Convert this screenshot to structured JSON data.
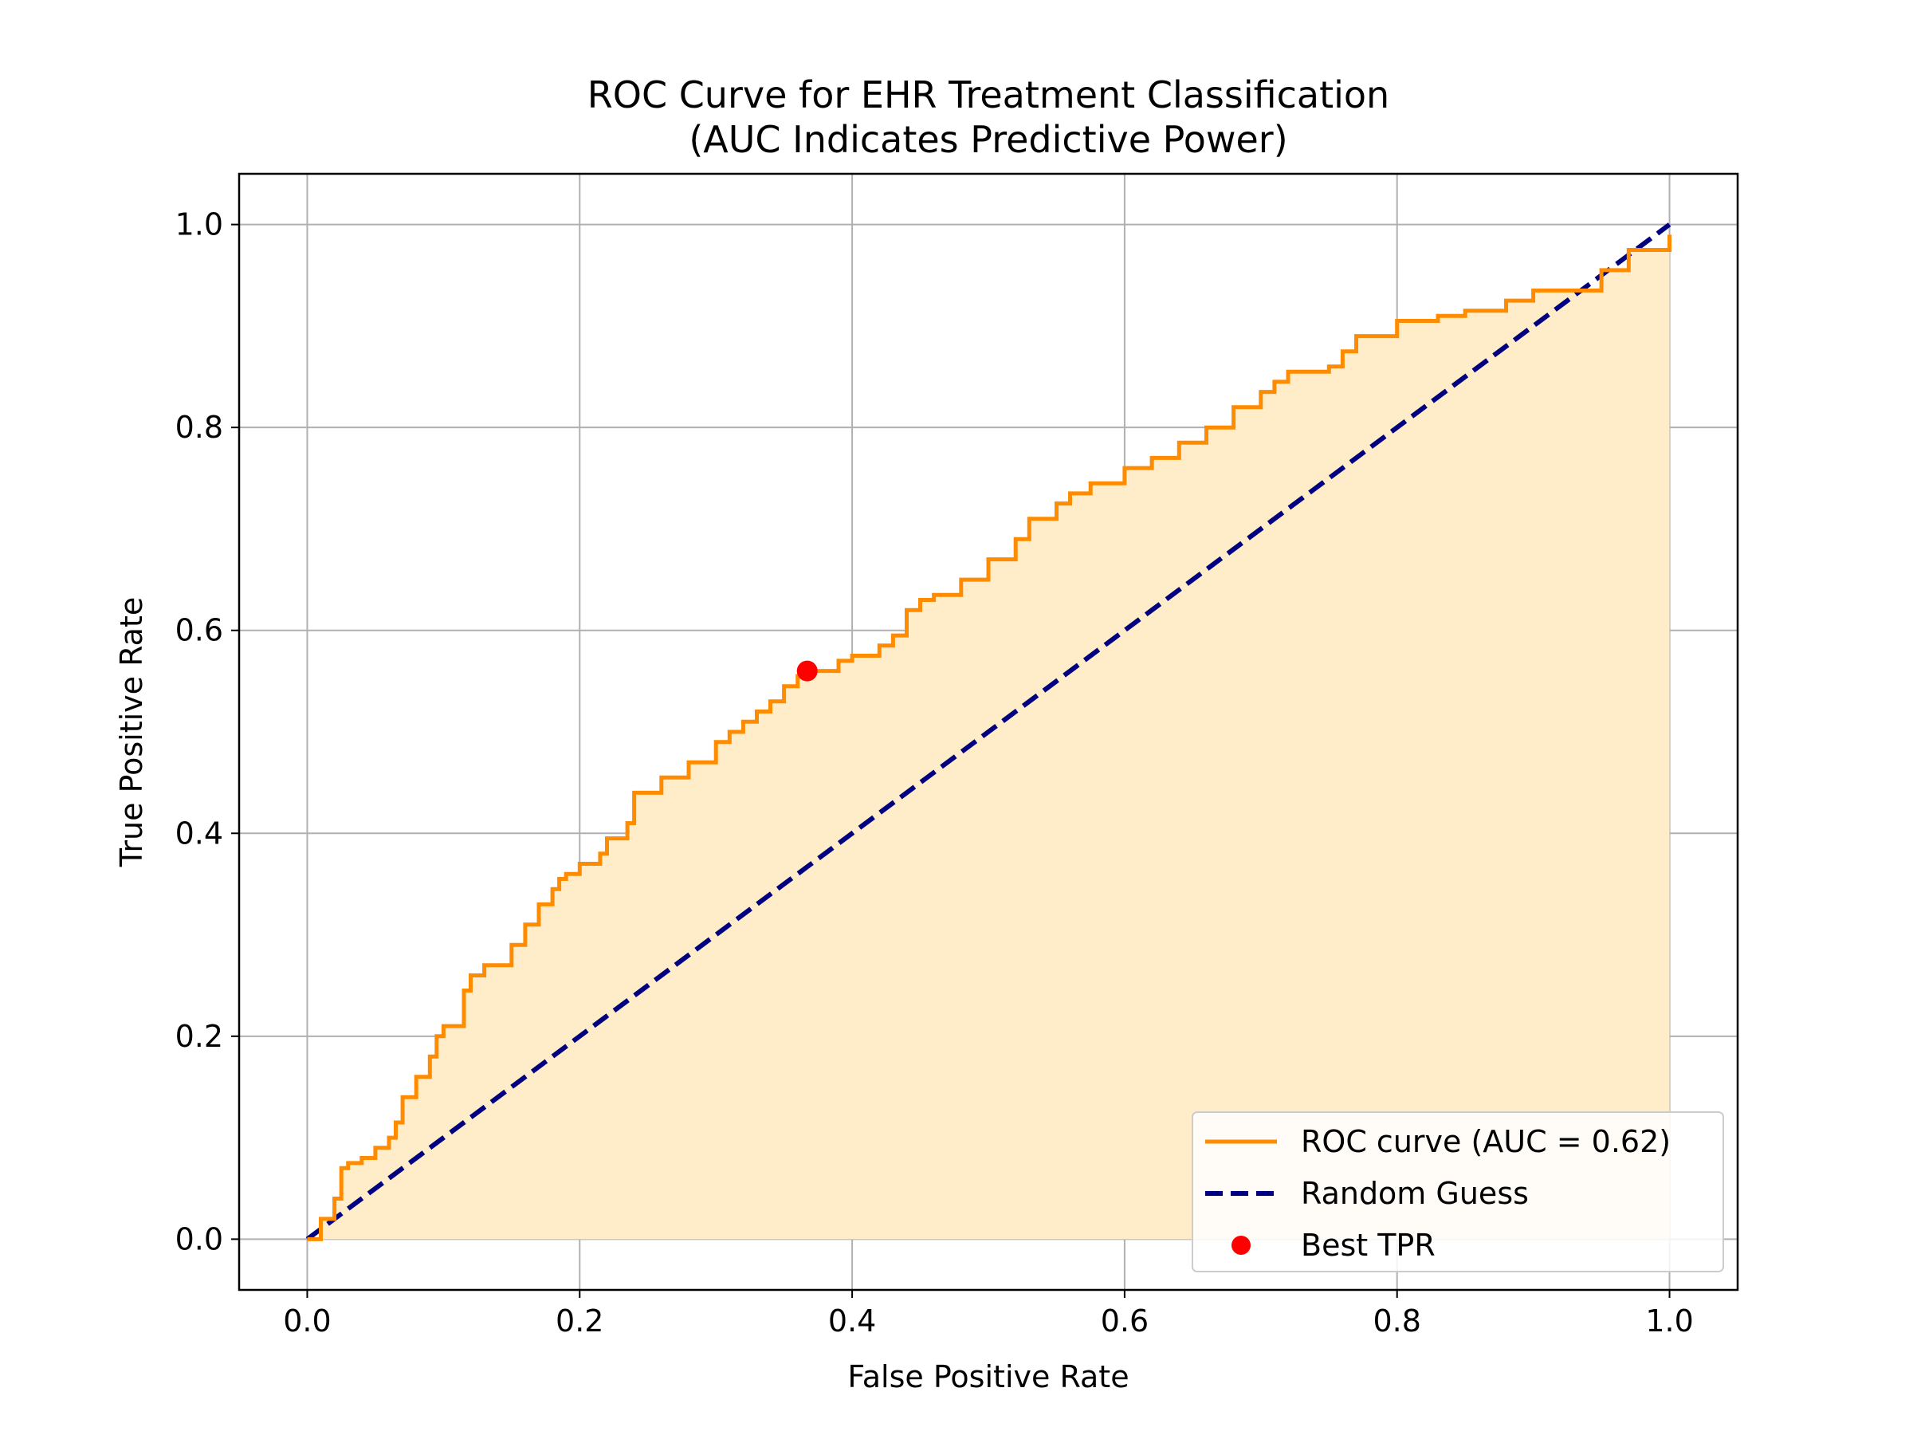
{
  "chart_data": {
    "type": "line",
    "title": "ROC Curve for EHR Treatment Classification",
    "subtitle": "(AUC Indicates Predictive Power)",
    "xlabel": "False Positive Rate",
    "ylabel": "True Positive Rate",
    "xlim": [
      -0.05,
      1.05
    ],
    "ylim": [
      -0.05,
      1.05
    ],
    "xticks": [
      0.0,
      0.2,
      0.4,
      0.6,
      0.8,
      1.0
    ],
    "yticks": [
      0.0,
      0.2,
      0.4,
      0.6,
      0.8,
      1.0
    ],
    "xtick_labels": [
      "0.0",
      "0.2",
      "0.4",
      "0.6",
      "0.8",
      "1.0"
    ],
    "ytick_labels": [
      "0.0",
      "0.2",
      "0.4",
      "0.6",
      "0.8",
      "1.0"
    ],
    "grid": true,
    "legend_position": "lower-right",
    "series": [
      {
        "name": "ROC curve (AUC = 0.62)",
        "style": "solid",
        "color": "#ff8c00",
        "fill_color": "#ffecc8",
        "x": [
          0.0,
          0.01,
          0.02,
          0.025,
          0.03,
          0.04,
          0.05,
          0.06,
          0.065,
          0.07,
          0.08,
          0.09,
          0.095,
          0.1,
          0.115,
          0.12,
          0.13,
          0.15,
          0.16,
          0.17,
          0.18,
          0.185,
          0.19,
          0.2,
          0.215,
          0.22,
          0.235,
          0.24,
          0.26,
          0.28,
          0.3,
          0.31,
          0.32,
          0.33,
          0.34,
          0.35,
          0.36,
          0.367,
          0.39,
          0.4,
          0.42,
          0.43,
          0.44,
          0.45,
          0.46,
          0.48,
          0.5,
          0.52,
          0.53,
          0.55,
          0.56,
          0.575,
          0.6,
          0.62,
          0.64,
          0.66,
          0.68,
          0.7,
          0.71,
          0.72,
          0.75,
          0.76,
          0.77,
          0.8,
          0.83,
          0.85,
          0.88,
          0.9,
          0.95,
          0.97,
          1.0
        ],
        "y": [
          0.0,
          0.02,
          0.04,
          0.07,
          0.075,
          0.08,
          0.09,
          0.1,
          0.115,
          0.14,
          0.16,
          0.18,
          0.2,
          0.21,
          0.245,
          0.26,
          0.27,
          0.29,
          0.31,
          0.33,
          0.345,
          0.355,
          0.36,
          0.37,
          0.38,
          0.395,
          0.41,
          0.44,
          0.455,
          0.47,
          0.49,
          0.5,
          0.51,
          0.52,
          0.53,
          0.545,
          0.555,
          0.56,
          0.57,
          0.575,
          0.585,
          0.595,
          0.62,
          0.63,
          0.635,
          0.65,
          0.67,
          0.69,
          0.71,
          0.725,
          0.735,
          0.745,
          0.76,
          0.77,
          0.785,
          0.8,
          0.82,
          0.835,
          0.845,
          0.855,
          0.86,
          0.875,
          0.89,
          0.905,
          0.91,
          0.915,
          0.925,
          0.935,
          0.955,
          0.975,
          0.99
        ]
      },
      {
        "name": "Random Guess",
        "style": "dashed",
        "color": "#000080",
        "x": [
          0.0,
          1.0
        ],
        "y": [
          0.0,
          1.0
        ]
      }
    ],
    "points": [
      {
        "name": "Best TPR",
        "color": "#ff0000",
        "x": 0.367,
        "y": 0.56
      }
    ]
  }
}
